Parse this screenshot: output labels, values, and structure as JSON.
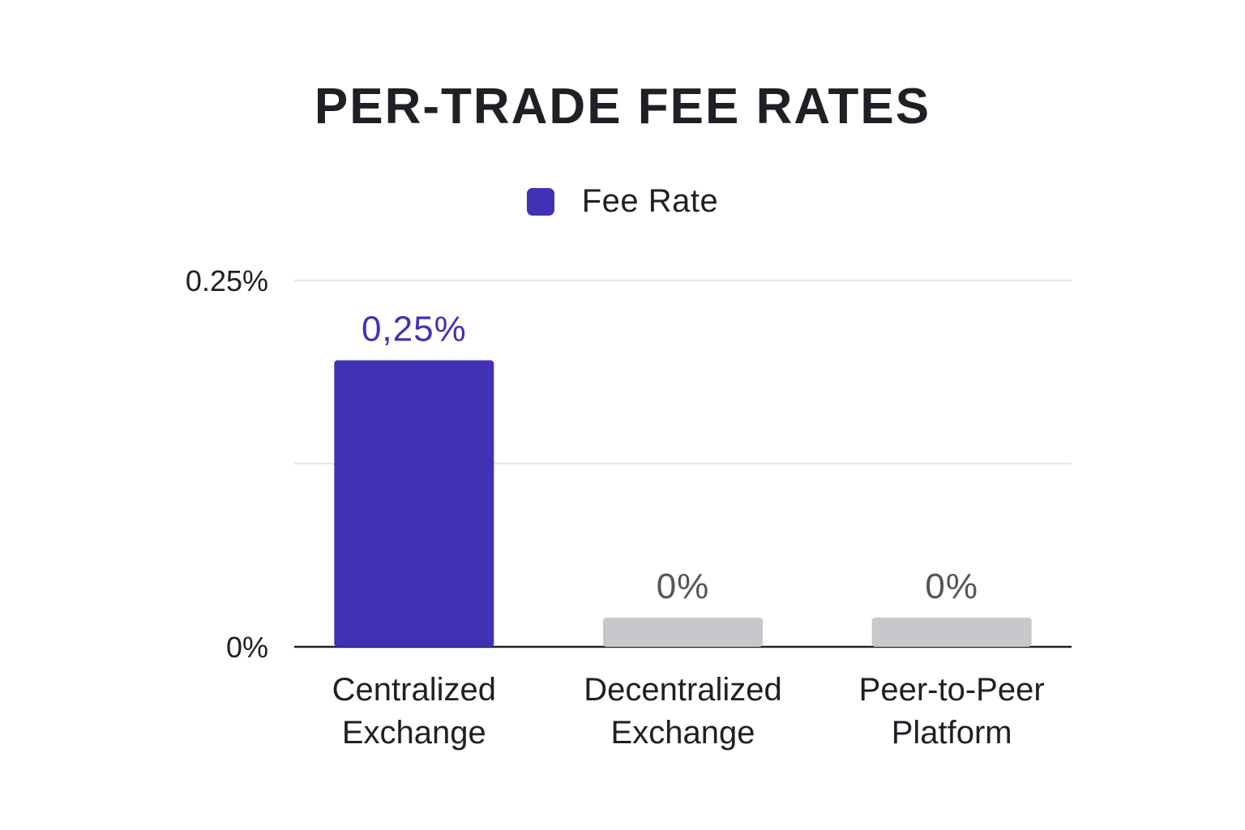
{
  "chart_data": {
    "type": "bar",
    "title": "PER-TRADE FEE RATES",
    "categories": [
      [
        "Centralized",
        "Exchange"
      ],
      [
        "Decentralized",
        "Exchange"
      ],
      [
        "Peer-to-Peer",
        "Platform"
      ]
    ],
    "series": [
      {
        "name": "Fee Rate",
        "values": [
          0.25,
          0,
          0
        ],
        "value_labels": [
          "0,25%",
          "0%",
          "0%"
        ]
      }
    ],
    "ylim": [
      0,
      0.25
    ],
    "y_ticks": [
      {
        "value": 0.25,
        "label": "0.25%"
      },
      {
        "value": 0,
        "label": "0%"
      }
    ],
    "grid": true,
    "legend": "top-center"
  },
  "colors": {
    "series_primary": "#4131b5",
    "zero_bar": "#c7c7cc",
    "zero_label": "#555559",
    "axis": "#1f2026",
    "grid": "#e8e8ea",
    "text": "#1f2026"
  }
}
